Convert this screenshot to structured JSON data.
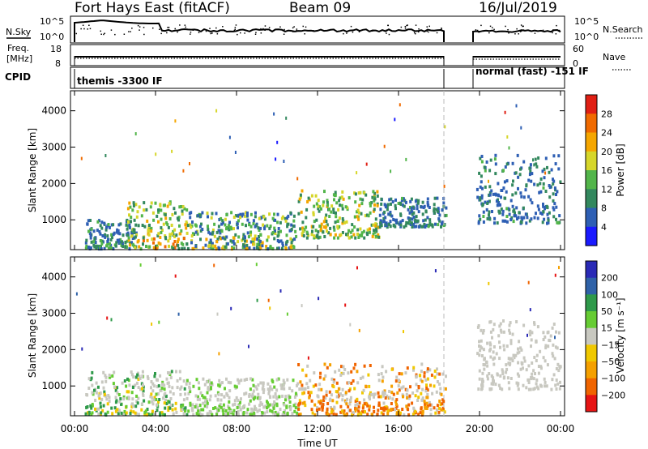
{
  "header": {
    "radar": "Fort Hays East (fitACF)",
    "beam": "Beam 09",
    "date": "16/Jul/2019"
  },
  "status_panel": {
    "nsky_label": "N.Sky",
    "nsky_ticks": [
      "10^5",
      "10^0"
    ],
    "nsearch_label": "N.Search",
    "freq_label_1": "Freq.",
    "freq_label_2": "[MHz]",
    "freq_ticks": [
      "18",
      "8"
    ],
    "nave_label": "Nave",
    "nave_ticks": [
      "60",
      "0"
    ],
    "cpid_label": "CPID",
    "cpid_1": "themis -3300 IF",
    "cpid_2": "normal (fast) -151 IF"
  },
  "colors": {
    "power": [
      "#1a1aff",
      "#2e5fb4",
      "#33885e",
      "#52b54a",
      "#d6d62a",
      "#f5a600",
      "#f06a00",
      "#e01f14"
    ],
    "velocity": [
      "#2a2ab6",
      "#2f62a8",
      "#2f9a4a",
      "#66cc33",
      "#c8c8c0",
      "#f0c800",
      "#f5a000",
      "#f06400",
      "#e61414"
    ]
  },
  "chart_data": [
    {
      "type": "heatmap",
      "quantity": "Power",
      "ylabel": "Slant Range [km]",
      "yticks": [
        1000,
        2000,
        3000,
        4000
      ],
      "ylim": [
        180,
        4550
      ],
      "xlim_hours": [
        0,
        24
      ],
      "colorbar_label": "Power [dB]",
      "colorbar_ticks": [
        "4",
        "8",
        "12",
        "16",
        "20",
        "24",
        "28"
      ],
      "colorbar_range": [
        0,
        32
      ],
      "data_gap_ut": [
        "18:20",
        "19:50"
      ],
      "echo_regions": [
        {
          "ut": [
            "00:30",
            "03:00"
          ],
          "range_km": [
            200,
            1000
          ],
          "power_db": [
            4,
            16
          ]
        },
        {
          "ut": [
            "02:30",
            "05:30"
          ],
          "range_km": [
            200,
            1500
          ],
          "power_db": [
            8,
            28
          ]
        },
        {
          "ut": [
            "05:30",
            "11:00"
          ],
          "range_km": [
            200,
            1200
          ],
          "power_db": [
            4,
            24
          ]
        },
        {
          "ut": [
            "11:00",
            "15:00"
          ],
          "range_km": [
            500,
            1800
          ],
          "power_db": [
            8,
            28
          ]
        },
        {
          "ut": [
            "15:00",
            "18:20"
          ],
          "range_km": [
            800,
            1600
          ],
          "power_db": [
            4,
            16
          ]
        },
        {
          "ut": [
            "19:50",
            "23:59"
          ],
          "range_km": [
            900,
            2800
          ],
          "power_db": [
            4,
            16
          ]
        }
      ]
    },
    {
      "type": "heatmap",
      "quantity": "Velocity",
      "ylabel": "Slant Range [km]",
      "yticks": [
        1000,
        2000,
        3000,
        4000
      ],
      "ylim": [
        180,
        4550
      ],
      "xlabel": "Time UT",
      "xticks": [
        "00:00",
        "04:00",
        "08:00",
        "12:00",
        "16:00",
        "20:00",
        "00:00"
      ],
      "xlim_hours": [
        0,
        24
      ],
      "colorbar_label": "Velocity [m s⁻¹]",
      "colorbar_ticks": [
        "200",
        "100",
        "50",
        "15",
        "−15",
        "−50",
        "−100",
        "−200"
      ],
      "data_gap_ut": [
        "18:20",
        "19:50"
      ],
      "echo_regions": [
        {
          "ut": [
            "00:30",
            "05:30"
          ],
          "range_km": [
            200,
            1400
          ],
          "velocity_ms": [
            -50,
            100
          ]
        },
        {
          "ut": [
            "05:30",
            "11:00"
          ],
          "range_km": [
            200,
            1200
          ],
          "velocity_ms": [
            -15,
            50
          ]
        },
        {
          "ut": [
            "11:00",
            "18:20"
          ],
          "range_km": [
            200,
            1600
          ],
          "velocity_ms": [
            -200,
            15
          ]
        },
        {
          "ut": [
            "19:50",
            "23:59"
          ],
          "range_km": [
            900,
            2800
          ],
          "velocity_ms": [
            -15,
            15
          ]
        }
      ]
    }
  ]
}
